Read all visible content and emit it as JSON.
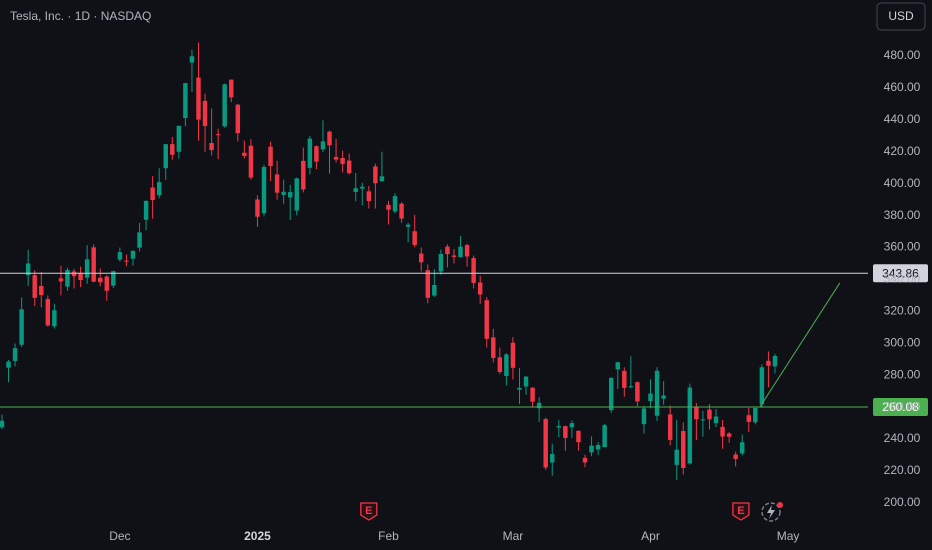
{
  "chart_data": {
    "type": "candlestick",
    "title": "Tesla, Inc. · 1D · NASDAQ",
    "currency": "USD",
    "up_color": "#089981",
    "down_color": "#f23645",
    "xlim": [
      -0.3,
      132.2
    ],
    "xticks": [
      {
        "value": 18,
        "label": "Dec"
      },
      {
        "value": 39,
        "label": "2025"
      },
      {
        "value": 59,
        "label": "Feb"
      },
      {
        "value": 78,
        "label": "Mar"
      },
      {
        "value": 99,
        "label": "Apr"
      },
      {
        "value": 120,
        "label": "May"
      }
    ],
    "ylim": [
      188,
      515.1
    ],
    "yticks": [
      {
        "value": 200,
        "label": "200.00"
      },
      {
        "value": 220,
        "label": "220.00"
      },
      {
        "value": 240,
        "label": "240.00"
      },
      {
        "value": 260,
        "label": "260.00"
      },
      {
        "value": 280,
        "label": "280.00"
      },
      {
        "value": 300,
        "label": "300.00"
      },
      {
        "value": 320,
        "label": "320.00"
      },
      {
        "value": 340,
        "label": "340.00"
      },
      {
        "value": 360,
        "label": "360.00"
      },
      {
        "value": 380,
        "label": "380.00"
      },
      {
        "value": 400,
        "label": "400.00"
      },
      {
        "value": 420,
        "label": "420.00"
      },
      {
        "value": 440,
        "label": "440.00"
      },
      {
        "value": 460,
        "label": "460.00"
      },
      {
        "value": 480,
        "label": "480.00"
      }
    ],
    "grid": false,
    "open": [
      247.3,
      284.7,
      288.9,
      299.1,
      342.7,
      342.7,
      335.9,
      327.7,
      310.6,
      340.7,
      335.5,
      345.0,
      343.8,
      341.1,
      360.1,
      341.0,
      341.8,
      336.1,
      352.4,
      351.8,
      353.0,
      359.9,
      377.4,
      397.6,
      392.7,
      409.7,
      424.8,
      420.0,
      441.1,
      475.9,
      466.5,
      451.9,
      425.5,
      431.0,
      435.9,
      465.2,
      449.5,
      419.4,
      423.8,
      390.1,
      381.5,
      423.2,
      405.8,
      392.95,
      391.4,
      383.2,
      414.3,
      409.9,
      423.5,
      421.5,
      432.6,
      416.8,
      416.1,
      414.5,
      394.8,
      396.9,
      395.2,
      410.8,
      401.5,
      386.7,
      382.6,
      387.5,
      373.0,
      370.2,
      356.2,
      345.8,
      329.9,
      345.0,
      360.6,
      355.0,
      354.0,
      361.5,
      353.4,
      338.1,
      327.0,
      303.7,
      291.2,
      279.5,
      300.3,
      270.9,
      272.9,
      272.1,
      259.3,
      252.5,
      225.3,
      247.2,
      248.1,
      247.3,
      245.1,
      228.2,
      231.6,
      233.4,
      234.99,
      258.1,
      283.6,
      282.7,
      272.5,
      275.6,
      249.3,
      263.8,
      254.6,
      265.3,
      255.4,
      223.8,
      245.0,
      224.7,
      260.0,
      251.8,
      258.4,
      249.9,
      247.6,
      243.5,
      230.3,
      230.96,
      254.9,
      250.5,
      261.7,
      288.98,
      285.5
    ],
    "high": [
      255.3,
      289.6,
      299.8,
      328.7,
      358.6,
      345.8,
      344.6,
      329.98,
      324.7,
      348.6,
      347.4,
      346.6,
      347.99,
      361.5,
      361.9,
      346.96,
      342.55,
      345.45,
      360.0,
      355.69,
      358.1,
      375.4,
      389.5,
      404.8,
      409.7,
      424.9,
      429.3,
      436.3,
      463.2,
      483.99,
      488.5,
      456.4,
      447.1,
      434.5,
      462.8,
      465.3,
      450.0,
      427.0,
      427.9,
      392.7,
      411.9,
      426.4,
      414.3,
      402.5,
      399.3,
      403.8,
      422.6,
      429.8,
      424.0,
      439.7,
      433.2,
      428.0,
      420.7,
      418.9,
      406.7,
      400.6,
      398.6,
      412.5,
      419.99,
      389.2,
      394.0,
      388.4,
      375.4,
      380.5,
      360.0,
      349.4,
      346.4,
      358.7,
      362.0,
      359.1,
      367.3,
      362.3,
      354.98,
      342.4,
      328.9,
      309.0,
      297.2,
      293.9,
      303.9,
      284.4,
      279.55,
      272.6,
      266.25,
      253.4,
      237.1,
      251.8,
      248.3,
      251.6,
      245.4,
      230.1,
      241.7,
      238.0,
      249.5,
      278.6,
      288.2,
      284.9,
      291.85,
      276.1,
      260.6,
      277.45,
      284.99,
      276.3,
      261.0,
      252.0,
      250.4,
      274.7,
      262.5,
      257.7,
      261.8,
      258.75,
      251.97,
      244.3,
      232.2,
      242.8,
      259.45,
      259.5,
      286.85,
      294.86,
      293.3
    ],
    "low": [
      246.2,
      275.6,
      285.5,
      297.7,
      336.0,
      323.3,
      322.5,
      310.4,
      309.2,
      330.0,
      332.8,
      334.3,
      335.3,
      337.2,
      338.2,
      335.7,
      326.6,
      334.65,
      351.15,
      348.2,
      348.6,
      357.5,
      370.8,
      378.0,
      390.9,
      402.4,
      415.0,
      415.7,
      436.0,
      457.5,
      427.0,
      420.0,
      417.6,
      415.4,
      435.1,
      451.1,
      426.5,
      415.75,
      402.5,
      373.0,
      379.45,
      401.7,
      390.0,
      387.4,
      377.3,
      380.1,
      394.5,
      405.7,
      409.1,
      419.75,
      406.3,
      413.3,
      407.0,
      405.8,
      389.0,
      386.5,
      384.5,
      384.4,
      401.3,
      374.4,
      381.4,
      375.5,
      363.2,
      360.3,
      345.0,
      325.1,
      329.1,
      342.9,
      347.5,
      350.0,
      353.7,
      348.0,
      334.4,
      324.7,
      297.25,
      288.0,
      280.9,
      273.6,
      277.3,
      261.8,
      267.7,
      260.0,
      250.7,
      220.7,
      217.0,
      241.1,
      232.6,
      240.7,
      232.8,
      222.3,
      229.2,
      230.05,
      234.55,
      256.3,
      271.3,
      266.5,
      271.8,
      260.6,
      243.4,
      259.25,
      251.3,
      261.5,
      236.0,
      214.25,
      217.8,
      223.9,
      239.3,
      241.4,
      245.9,
      247.5,
      233.9,
      237.7,
      222.8,
      229.85,
      244.4,
      249.2,
      259.6,
      272.4,
      281.0
    ],
    "close": [
      251.44,
      288.53,
      296.91,
      321.22,
      350.0,
      328.49,
      330.24,
      311.18,
      320.72,
      338.74,
      346.0,
      342.03,
      339.64,
      352.56,
      338.59,
      338.23,
      332.89,
      345.16,
      357.09,
      351.42,
      357.93,
      369.49,
      389.22,
      389.79,
      400.99,
      424.77,
      418.1,
      436.23,
      463.02,
      479.86,
      440.13,
      436.17,
      421.06,
      430.6,
      462.28,
      454.13,
      431.66,
      417.41,
      403.84,
      379.28,
      410.44,
      411.05,
      394.36,
      394.94,
      394.74,
      403.31,
      396.36,
      428.22,
      413.82,
      426.5,
      424.07,
      415.11,
      412.38,
      406.58,
      397.15,
      398.09,
      389.1,
      400.28,
      404.6,
      383.68,
      392.21,
      378.17,
      374.32,
      361.62,
      350.73,
      328.5,
      336.51,
      355.94,
      355.84,
      354.11,
      360.56,
      354.4,
      337.8,
      330.53,
      302.8,
      290.8,
      281.95,
      292.98,
      284.65,
      272.04,
      279.1,
      263.45,
      262.67,
      222.15,
      230.58,
      248.09,
      240.68,
      249.98,
      238.01,
      225.31,
      235.86,
      236.26,
      248.71,
      278.39,
      288.14,
      272.06,
      273.13,
      263.55,
      259.16,
      268.46,
      282.76,
      267.28,
      239.43,
      233.29,
      221.86,
      272.2,
      252.4,
      252.31,
      252.35,
      254.11,
      241.55,
      241.37,
      227.5,
      237.97,
      250.74,
      259.51,
      284.95,
      285.88,
      292.03
    ],
    "price_lines": [
      {
        "value": 343.86,
        "color": "#d1d4dc",
        "label_color": "#131722"
      },
      {
        "value": 260.08,
        "color": "#4caf50",
        "label_color": "#ffffff"
      }
    ],
    "trend_line": {
      "x": [
        115.7,
        127.9
      ],
      "y": [
        260.08,
        337.8
      ],
      "color": "#4caf50"
    },
    "event_markers": [
      {
        "x": 56,
        "label": "E"
      },
      {
        "x": 112.8,
        "label": "E"
      }
    ]
  }
}
